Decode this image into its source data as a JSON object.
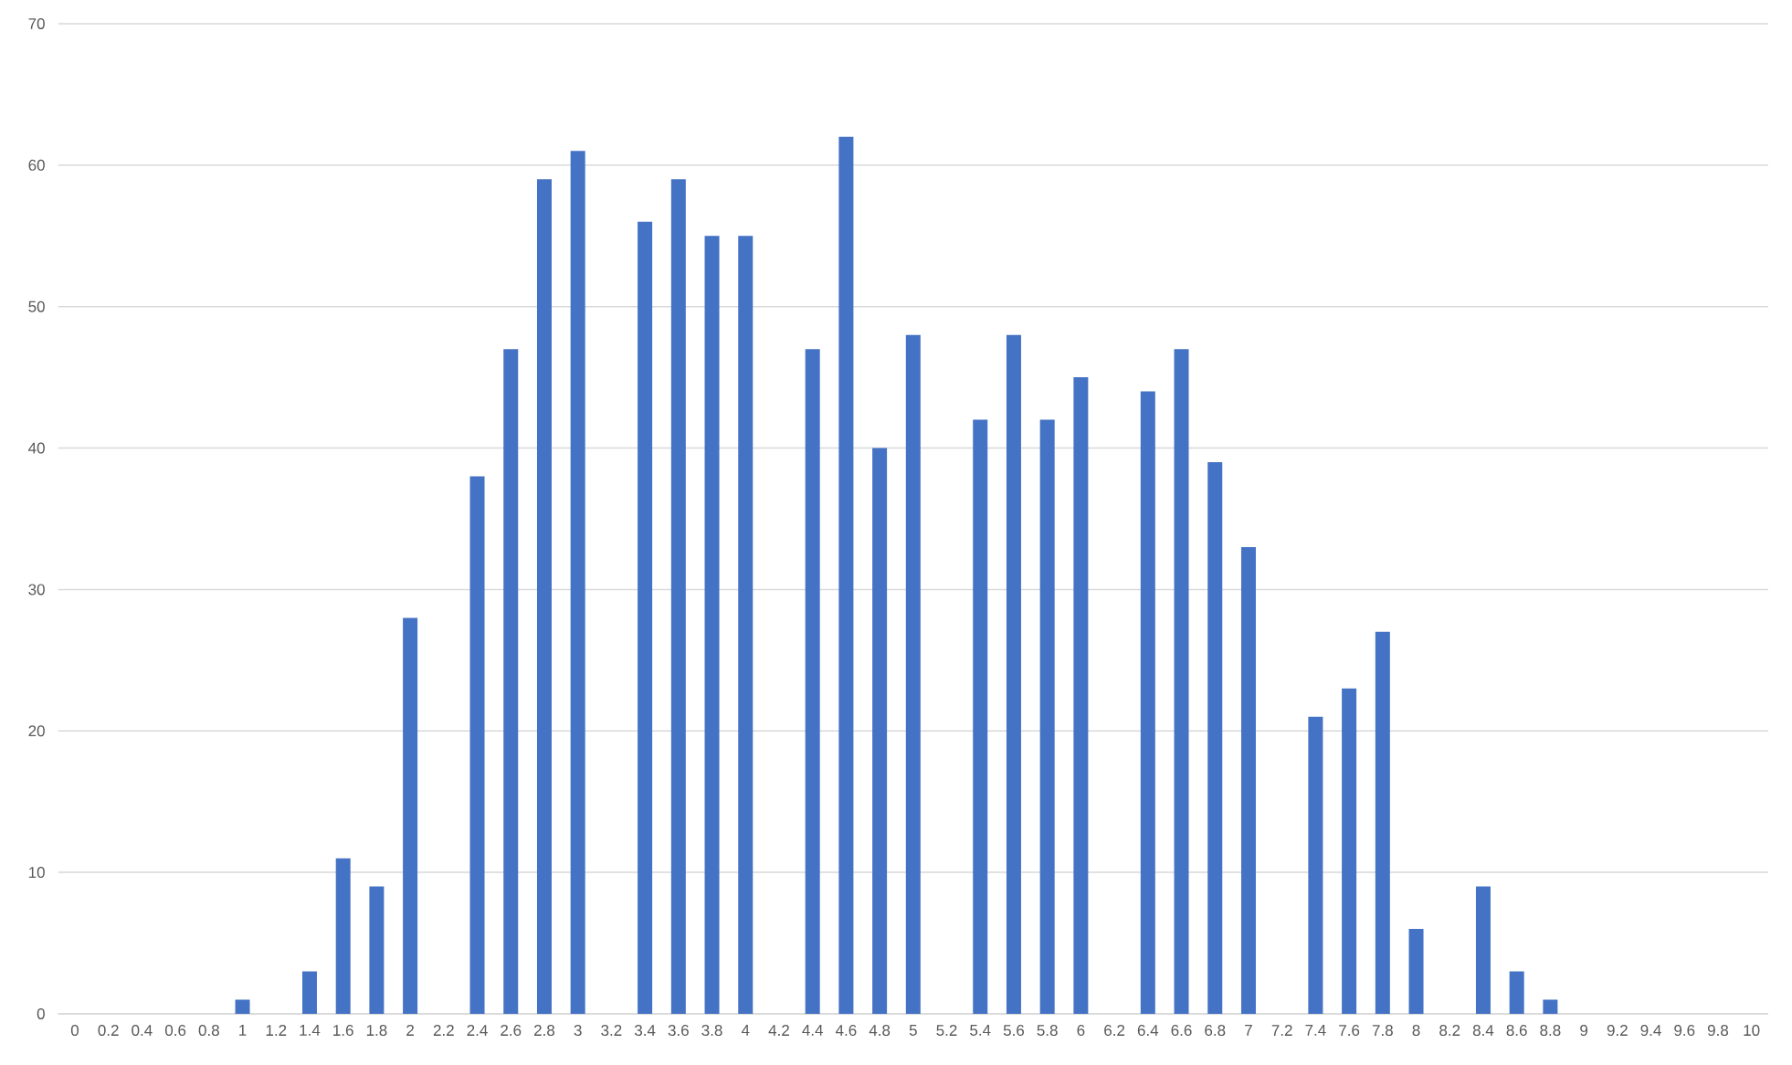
{
  "chart_data": {
    "type": "bar",
    "categories": [
      "0",
      "0.2",
      "0.4",
      "0.6",
      "0.8",
      "1",
      "1.2",
      "1.4",
      "1.6",
      "1.8",
      "2",
      "2.2",
      "2.4",
      "2.6",
      "2.8",
      "3",
      "3.2",
      "3.4",
      "3.6",
      "3.8",
      "4",
      "4.2",
      "4.4",
      "4.6",
      "4.8",
      "5",
      "5.2",
      "5.4",
      "5.6",
      "5.8",
      "6",
      "6.2",
      "6.4",
      "6.6",
      "6.8",
      "7",
      "7.2",
      "7.4",
      "7.6",
      "7.8",
      "8",
      "8.2",
      "8.4",
      "8.6",
      "8.8",
      "9",
      "9.2",
      "9.4",
      "9.6",
      "9.8",
      "10"
    ],
    "values": [
      0,
      0,
      0,
      0,
      0,
      1,
      0,
      3,
      11,
      9,
      28,
      0,
      38,
      47,
      59,
      61,
      0,
      56,
      59,
      55,
      55,
      0,
      47,
      62,
      40,
      48,
      0,
      42,
      48,
      42,
      45,
      0,
      44,
      47,
      39,
      33,
      0,
      21,
      23,
      27,
      6,
      0,
      9,
      3,
      1,
      0,
      0,
      0,
      0,
      0,
      0
    ],
    "color": "#4472c4",
    "ylim": [
      0,
      70
    ],
    "yticks": [
      0,
      10,
      20,
      30,
      40,
      50,
      60,
      70
    ],
    "grid": "y"
  }
}
